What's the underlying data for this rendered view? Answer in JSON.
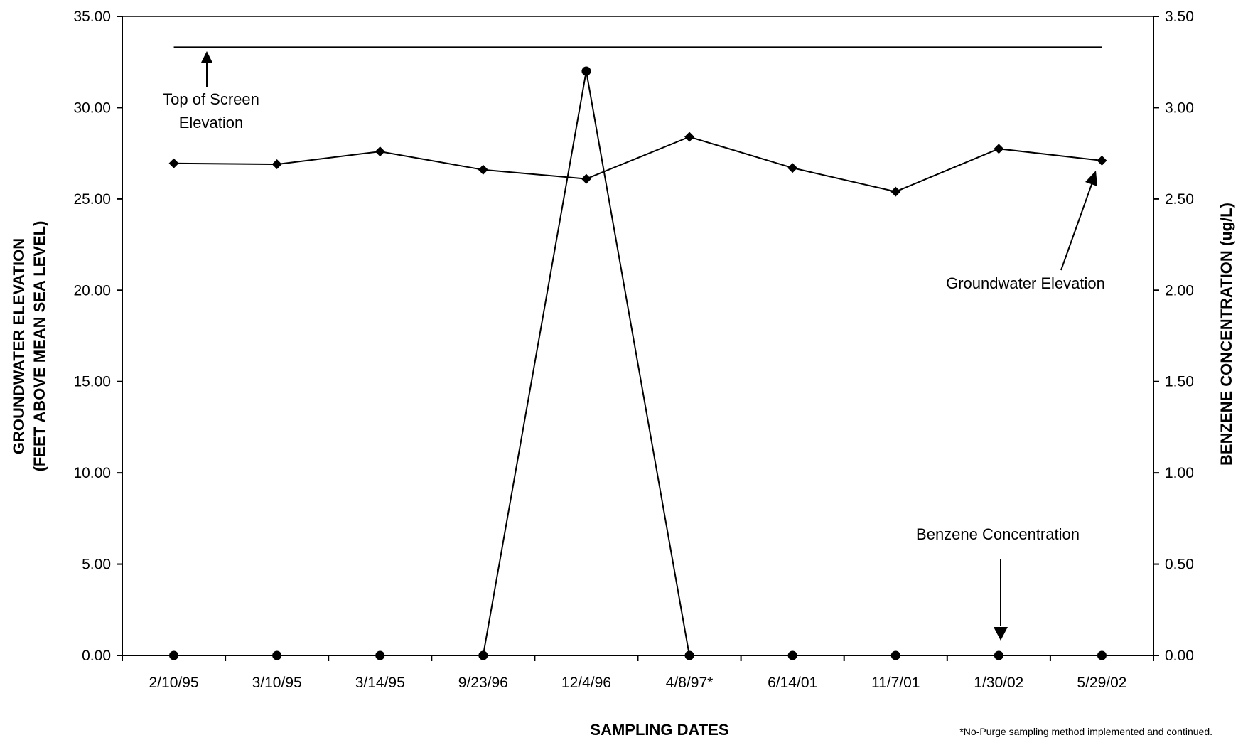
{
  "chart_data": {
    "type": "line",
    "x_axis": {
      "title": "SAMPLING DATES",
      "categories": [
        "2/10/95",
        "3/10/95",
        "3/14/95",
        "9/23/96",
        "12/4/96",
        "4/8/97*",
        "6/14/01",
        "11/7/01",
        "1/30/02",
        "5/29/02"
      ]
    },
    "y_axis_left": {
      "title_line1": "GROUNDWATER ELEVATION",
      "title_line2": "(FEET ABOVE MEAN SEA LEVEL)",
      "ylim": [
        0,
        35
      ],
      "ticks": [
        "0.00",
        "5.00",
        "10.00",
        "15.00",
        "20.00",
        "25.00",
        "30.00",
        "35.00"
      ]
    },
    "y_axis_right": {
      "title": "BENZENE CONCENTRATION (ug/L)",
      "ylim": [
        0,
        3.5
      ],
      "ticks": [
        "0.00",
        "0.50",
        "1.00",
        "1.50",
        "2.00",
        "2.50",
        "3.00",
        "3.50"
      ]
    },
    "series": [
      {
        "name": "Groundwater Elevation",
        "axis": "left",
        "marker": "diamond",
        "values": [
          26.95,
          26.9,
          27.6,
          26.6,
          26.1,
          28.4,
          26.7,
          25.4,
          27.75,
          27.1
        ]
      },
      {
        "name": "Benzene Concentration",
        "axis": "right",
        "marker": "circle",
        "values": [
          0,
          0,
          0,
          0,
          3.2,
          0,
          0,
          0,
          0,
          0
        ]
      }
    ],
    "reference_line": {
      "name": "Top of Screen Elevation",
      "label_line1": "Top of Screen",
      "label_line2": "Elevation",
      "axis": "left",
      "value": 33.3
    },
    "annotations": {
      "groundwater_label": "Groundwater Elevation",
      "benzene_label": "Benzene Concentration"
    },
    "footnote": "*No-Purge sampling method implemented and continued.",
    "grid": false,
    "legend": "none"
  }
}
